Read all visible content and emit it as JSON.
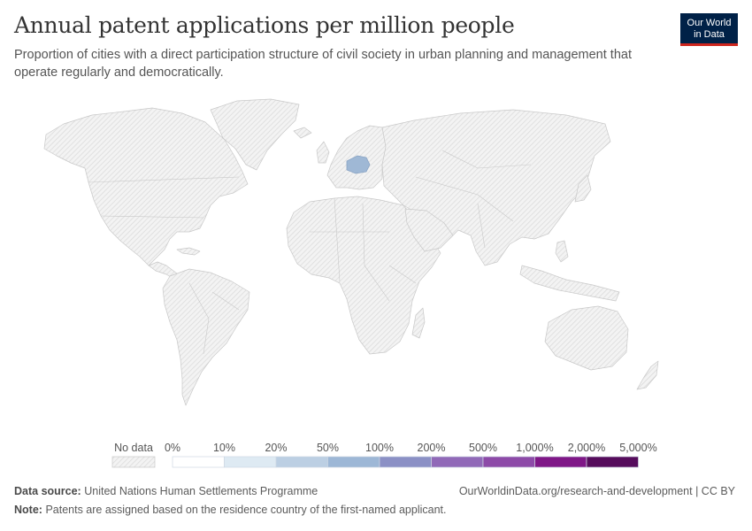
{
  "header": {
    "title": "Annual patent applications per million people",
    "subtitle": "Proportion of cities with a direct participation structure of civil society in urban planning and management that operate regularly and democratically."
  },
  "logo": {
    "line1": "Our World",
    "line2": "in Data",
    "bg_color": "#002147",
    "accent_color": "#ce261e"
  },
  "map": {
    "no_data_color": "#e8e8e8",
    "highlighted_country": {
      "name": "Poland",
      "bin": "50%–100%",
      "color": "#9fb8d5"
    }
  },
  "legend": {
    "no_data_label": "No data",
    "bins": [
      {
        "label": "0%",
        "color": "#ffffff"
      },
      {
        "label": "10%",
        "color": "#deeaf3"
      },
      {
        "label": "20%",
        "color": "#bccfe3"
      },
      {
        "label": "50%",
        "color": "#9db7d6"
      },
      {
        "label": "100%",
        "color": "#8b90c5"
      },
      {
        "label": "200%",
        "color": "#9169b8"
      },
      {
        "label": "500%",
        "color": "#8d4aa8"
      },
      {
        "label": "1,000%",
        "color": "#7f1787"
      },
      {
        "label": "2,000%",
        "color": "#560c5c"
      }
    ],
    "last_label": "5,000%"
  },
  "footer": {
    "source_label": "Data source:",
    "source_value": "United Nations Human Settlements Programme",
    "url": "OurWorldinData.org/research-and-development | CC BY",
    "note_label": "Note:",
    "note_value": "Patents are assigned based on the residence country of the first-named applicant."
  }
}
